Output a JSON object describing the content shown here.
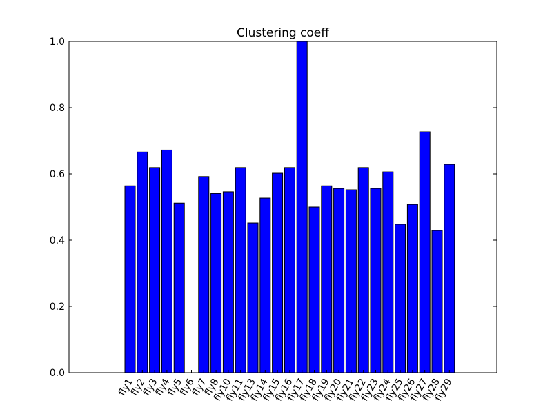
{
  "chart_data": {
    "type": "bar",
    "title": "Clustering coeff",
    "xlabel": "",
    "ylabel": "",
    "ylim": [
      0,
      1.0
    ],
    "yticks": [
      "0.0",
      "0.2",
      "0.4",
      "0.6",
      "0.8",
      "1.0"
    ],
    "grid": false,
    "categories": [
      "fly1",
      "fly2",
      "fly3",
      "fly4",
      "fly5",
      "fly6",
      "fly7",
      "fly8",
      "fly10",
      "fly11",
      "fly13",
      "fly14",
      "fly15",
      "fly16",
      "fly17",
      "fly18",
      "fly19",
      "fly20",
      "fly21",
      "fly22",
      "fly23",
      "fly24",
      "fly25",
      "fly26",
      "fly27",
      "fly28",
      "fly29"
    ],
    "values": [
      0.564,
      0.666,
      0.619,
      0.672,
      0.512,
      0.0,
      0.592,
      0.541,
      0.546,
      0.619,
      0.452,
      0.527,
      0.602,
      0.619,
      1.0,
      0.5,
      0.564,
      0.556,
      0.552,
      0.619,
      0.556,
      0.606,
      0.448,
      0.508,
      0.727,
      0.429,
      0.629
    ],
    "bar_color": "#0000ff",
    "edge_color": "#000000"
  }
}
